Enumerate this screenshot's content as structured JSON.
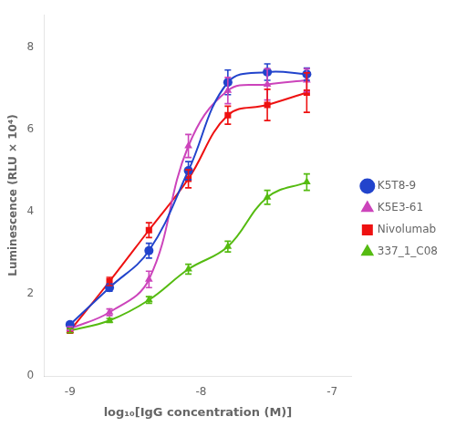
{
  "chart_data": {
    "type": "scatter",
    "x_title": "log₁₀[IgG concentration (M)]",
    "y_title": "Luminescence (RLU × 10⁴)",
    "x": [
      -9.0,
      -8.699,
      -8.398,
      -8.097,
      -7.796,
      -7.495,
      -7.194
    ],
    "series": [
      {
        "name": "K5T8-9",
        "color": "#2244CC",
        "marker": "circle",
        "line_style": "solid",
        "values": [
          1.25,
          2.15,
          3.05,
          5.0,
          7.15,
          7.4,
          7.35
        ],
        "yerr": [
          0.06,
          0.09,
          0.18,
          0.22,
          0.3,
          0.2,
          0.15
        ]
      },
      {
        "name": "K5E3-61",
        "color": "#CC44BB",
        "marker": "triangle",
        "line_style": "solid",
        "values": [
          1.15,
          1.55,
          2.35,
          5.6,
          6.95,
          7.1,
          7.2
        ],
        "yerr": [
          0.05,
          0.08,
          0.2,
          0.28,
          0.32,
          0.38,
          0.28
        ]
      },
      {
        "name": "Nivolumab",
        "color": "#EE1111",
        "marker": "square",
        "line_style": "solid",
        "values": [
          1.1,
          2.3,
          3.55,
          4.8,
          6.35,
          6.6,
          6.9
        ],
        "yerr": [
          0.05,
          0.1,
          0.18,
          0.22,
          0.22,
          0.38,
          0.48
        ]
      },
      {
        "name": "337_1_C08",
        "color": "#55BB11",
        "marker": "triangle",
        "line_style": "solid",
        "values": [
          1.1,
          1.35,
          1.85,
          2.6,
          3.15,
          4.35,
          4.72
        ],
        "yerr": [
          0.05,
          0.05,
          0.08,
          0.12,
          0.13,
          0.17,
          0.2
        ]
      }
    ],
    "xlim": [
      -9.2,
      -6.85
    ],
    "ylim": [
      0,
      8.8
    ],
    "xticks": [
      -9,
      -8,
      -7
    ],
    "yticks": [
      0,
      2,
      4,
      6,
      8
    ],
    "grid": false,
    "legend": "right"
  }
}
